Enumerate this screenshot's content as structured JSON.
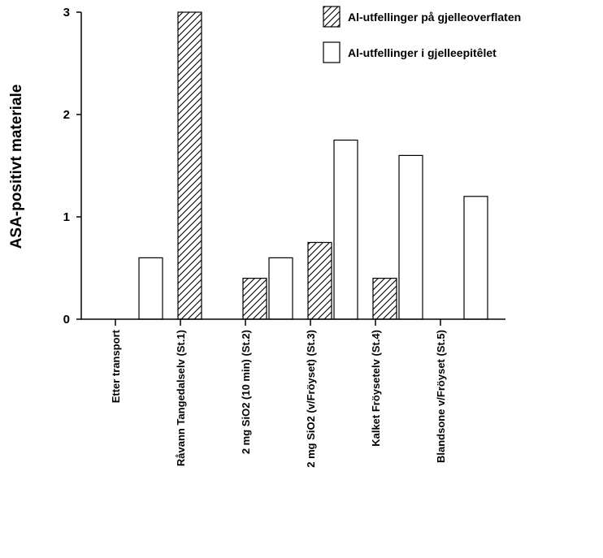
{
  "chart_data": {
    "type": "bar",
    "title": "",
    "xlabel": "",
    "ylabel": "ASA-positivt materiale",
    "ylim": [
      0,
      3
    ],
    "yticks": [
      "0",
      "1",
      "2",
      "3"
    ],
    "grid": false,
    "legend_position": "top-right",
    "categories": [
      "Etter transport",
      "Råvann Tangedalselv (St.1)",
      "2 mg SiO2 (10 min) (St.2)",
      "2 mg SiO2 (v/Fröyset) (St.3)",
      "Kalket Fröysetelv (St.4)",
      "Blandsone v/Fröyset (St.5)"
    ],
    "series": [
      {
        "name": "Al-utfellinger på gjelleoverflaten",
        "pattern": "hatched",
        "values": [
          0,
          3.0,
          0.4,
          0.75,
          0.4,
          0
        ]
      },
      {
        "name": "Al-utfellinger i gjelleepitêlet",
        "pattern": "open",
        "values": [
          0.6,
          0,
          0.6,
          1.75,
          1.6,
          1.2
        ]
      }
    ]
  }
}
